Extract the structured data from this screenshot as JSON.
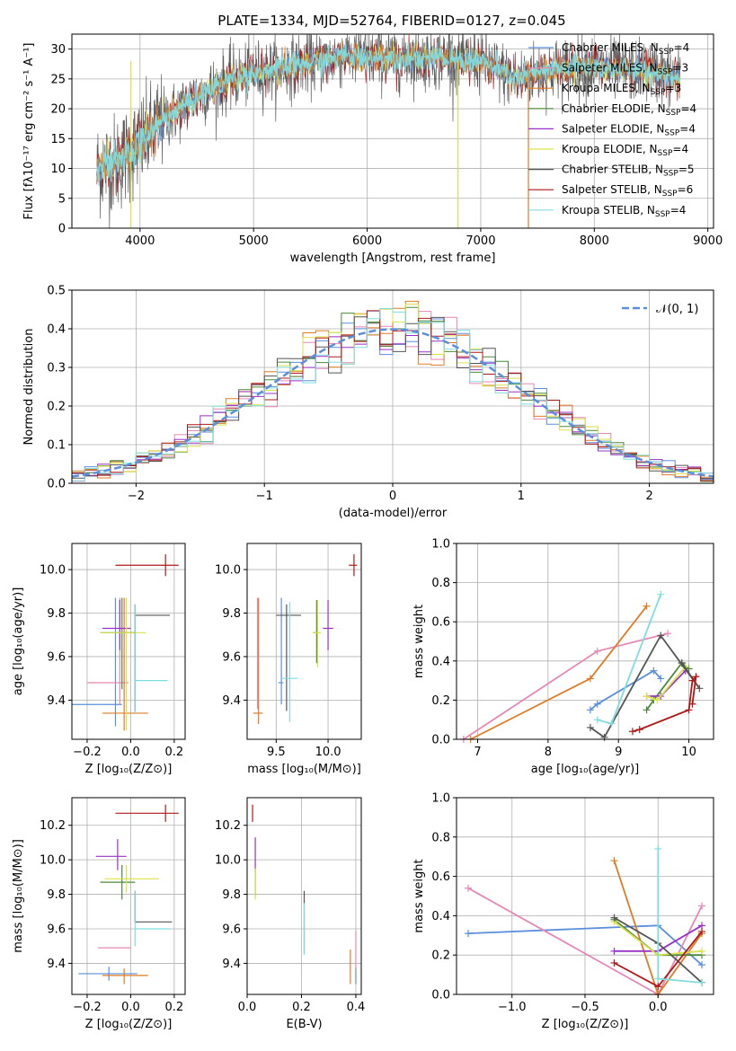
{
  "figure": {
    "title": "PLATE=1334, MJD=52764, FIBERID=0127, z=0.045"
  },
  "models": [
    {
      "key": "chabrier_miles",
      "name": "Chabrier MILES, N",
      "sub": "SSP",
      "tail": "=4",
      "color": "#5b8fd9"
    },
    {
      "key": "salpeter_miles",
      "name": "Salpeter MILES, N",
      "sub": "SSP",
      "tail": "=3",
      "color": "#e687b5"
    },
    {
      "key": "kroupa_miles",
      "name": "Kroupa MILES, N",
      "sub": "SSP",
      "tail": "=3",
      "color": "#e07b24"
    },
    {
      "key": "chabrier_elodie",
      "name": "Chabrier ELODIE, N",
      "sub": "SSP",
      "tail": "=4",
      "color": "#4a8a3a"
    },
    {
      "key": "salpeter_elodie",
      "name": "Salpeter ELODIE, N",
      "sub": "SSP",
      "tail": "=4",
      "color": "#9b30c8"
    },
    {
      "key": "kroupa_elodie",
      "name": "Kroupa ELODIE, N",
      "sub": "SSP",
      "tail": "=4",
      "color": "#d9e24a"
    },
    {
      "key": "chabrier_stelib",
      "name": "Chabrier STELIB, N",
      "sub": "SSP",
      "tail": "=5",
      "color": "#555555"
    },
    {
      "key": "salpeter_stelib",
      "name": "Salpeter STELIB, N",
      "sub": "SSP",
      "tail": "=6",
      "color": "#b01818"
    },
    {
      "key": "kroupa_stelib",
      "name": "Kroupa STELIB, N",
      "sub": "SSP",
      "tail": "=4",
      "color": "#7fdde0"
    }
  ],
  "chart_data": [
    {
      "id": "spectrum",
      "type": "line",
      "xlabel": "wavelength [Angstrom, rest frame]",
      "ylabel": "Flux [fλ10⁻¹⁷ erg cm⁻² s⁻¹ A⁻¹]",
      "xlim": [
        3400,
        9050
      ],
      "ylim": [
        0,
        32.5
      ],
      "xticks": [
        4000,
        5000,
        6000,
        7000,
        8000,
        9000
      ],
      "yticks": [
        0,
        5,
        10,
        15,
        20,
        25,
        30
      ],
      "data_range": [
        3620,
        8760
      ],
      "continuum": {
        "x": [
          3620,
          3800,
          4000,
          4200,
          4500,
          4800,
          5000,
          5300,
          5600,
          5800,
          6000,
          6300,
          6600,
          7000,
          7300,
          7500,
          7800,
          8000,
          8300,
          8600,
          8760
        ],
        "y": [
          10,
          11,
          14,
          18,
          22,
          25,
          26,
          27,
          28,
          29,
          28.5,
          28.5,
          28.5,
          28,
          25,
          26,
          27,
          27,
          26.5,
          26,
          25
        ]
      },
      "spikes": [
        {
          "x": 3920,
          "y": 0,
          "color": "#d9e24a"
        },
        {
          "x": 6800,
          "y": 0,
          "color": "#d9e24a"
        },
        {
          "x": 7420,
          "y": 0,
          "color": "#e07b24"
        },
        {
          "x": 6720,
          "y": 32.5,
          "color": "#555555"
        }
      ]
    },
    {
      "id": "residuals",
      "type": "histogram",
      "xlabel": "(data-model)/error",
      "ylabel": "Normed distribution",
      "xlim": [
        -2.5,
        2.5
      ],
      "ylim": [
        0,
        0.5
      ],
      "xticks": [
        -2,
        -1,
        0,
        1,
        2
      ],
      "yticks": [
        0.0,
        0.1,
        0.2,
        0.3,
        0.4,
        0.5
      ],
      "bin_width": 0.1,
      "reference": {
        "name": "𝒩(0, 1)",
        "mean": 0,
        "sigma": 1,
        "color": "#5b8fd9"
      },
      "peak_range": [
        0.35,
        0.48
      ]
    },
    {
      "id": "age_vs_Z",
      "type": "errorbar",
      "xlabel": "Z [log₁₀(Z/Z⊙)]",
      "ylabel": "age  [log₁₀(age/yr)]",
      "xlim": [
        -0.27,
        0.25
      ],
      "ylim": [
        9.22,
        10.12
      ],
      "xticks": [
        -0.2,
        0.0,
        0.2
      ],
      "yticks": [
        9.4,
        9.6,
        9.8,
        10.0
      ],
      "points": [
        {
          "m": "chabrier_miles",
          "x": -0.07,
          "y": 9.38,
          "xerr": [
            0.2,
            0.03
          ],
          "yerr": [
            0.1,
            0.49
          ]
        },
        {
          "m": "salpeter_miles",
          "x": -0.05,
          "y": 9.48,
          "xerr": [
            0.15,
            0.04
          ],
          "yerr": [
            0.1,
            0.39
          ]
        },
        {
          "m": "kroupa_miles",
          "x": -0.03,
          "y": 9.34,
          "xerr": [
            0.1,
            0.11
          ],
          "yerr": [
            0.08,
            0.53
          ]
        },
        {
          "m": "chabrier_elodie",
          "x": -0.04,
          "y": 9.71,
          "xerr": [
            0.1,
            0.06
          ],
          "yerr": [
            0.26,
            0.16
          ]
        },
        {
          "m": "salpeter_elodie",
          "x": -0.05,
          "y": 9.73,
          "xerr": [
            0.08,
            0.05
          ],
          "yerr": [
            0.1,
            0.13
          ]
        },
        {
          "m": "kroupa_elodie",
          "x": -0.02,
          "y": 9.71,
          "xerr": [
            0.12,
            0.09
          ],
          "yerr": [
            0.45,
            0.16
          ]
        },
        {
          "m": "chabrier_stelib",
          "x": 0.02,
          "y": 9.79,
          "xerr": [
            0.0,
            0.16
          ],
          "yerr": [
            0.44,
            0.05
          ]
        },
        {
          "m": "salpeter_stelib",
          "x": 0.16,
          "y": 10.02,
          "xerr": [
            0.23,
            0.06
          ],
          "yerr": [
            0.05,
            0.05
          ]
        },
        {
          "m": "kroupa_stelib",
          "x": 0.02,
          "y": 9.49,
          "xerr": [
            0.0,
            0.15
          ],
          "yerr": [
            0.15,
            0.35
          ]
        }
      ]
    },
    {
      "id": "age_vs_mass",
      "type": "errorbar",
      "xlabel": "mass [log₁₀(M/M⊙)]",
      "ylabel": "",
      "xlim": [
        9.22,
        10.32
      ],
      "ylim": [
        9.22,
        10.12
      ],
      "xticks": [
        9.5,
        10.0
      ],
      "yticks": [
        9.4,
        9.6,
        9.8,
        10.0
      ],
      "points": [
        {
          "m": "chabrier_miles",
          "x": 9.55,
          "y": 9.48,
          "xerr": [
            0.03,
            0.02
          ],
          "yerr": [
            0.1,
            0.39
          ]
        },
        {
          "m": "salpeter_miles",
          "x": 9.32,
          "y": 9.48,
          "xerr": [
            0.0,
            0.0
          ],
          "yerr": [
            0.12,
            0.39
          ]
        },
        {
          "m": "kroupa_miles",
          "x": 9.33,
          "y": 9.34,
          "xerr": [
            0.05,
            0.04
          ],
          "yerr": [
            0.05,
            0.53
          ]
        },
        {
          "m": "chabrier_elodie",
          "x": 9.89,
          "y": 9.71,
          "xerr": [
            0.03,
            0.02
          ],
          "yerr": [
            0.14,
            0.15
          ]
        },
        {
          "m": "salpeter_elodie",
          "x": 10.0,
          "y": 9.73,
          "xerr": [
            0.05,
            0.05
          ],
          "yerr": [
            0.1,
            0.13
          ]
        },
        {
          "m": "kroupa_elodie",
          "x": 9.9,
          "y": 9.71,
          "xerr": [
            0.05,
            0.03
          ],
          "yerr": [
            0.16,
            0.15
          ]
        },
        {
          "m": "chabrier_stelib",
          "x": 9.6,
          "y": 9.79,
          "xerr": [
            0.1,
            0.14
          ],
          "yerr": [
            0.44,
            0.05
          ]
        },
        {
          "m": "salpeter_stelib",
          "x": 10.25,
          "y": 10.02,
          "xerr": [
            0.05,
            0.03
          ],
          "yerr": [
            0.05,
            0.05
          ]
        },
        {
          "m": "kroupa_stelib",
          "x": 9.63,
          "y": 9.5,
          "xerr": [
            0.08,
            0.08
          ],
          "yerr": [
            0.2,
            0.35
          ]
        }
      ]
    },
    {
      "id": "massweight_vs_age",
      "type": "line",
      "xlabel": "age  [log₁₀(age/yr)]",
      "ylabel": "mass weight",
      "xlim": [
        6.7,
        10.35
      ],
      "ylim": [
        0,
        1.0
      ],
      "xticks": [
        7,
        8,
        9,
        10
      ],
      "yticks": [
        0.0,
        0.2,
        0.4,
        0.6,
        0.8,
        1.0
      ],
      "series": [
        {
          "m": "chabrier_miles",
          "x": [
            8.6,
            8.7,
            9.5,
            9.6
          ],
          "y": [
            0.15,
            0.18,
            0.35,
            0.31
          ]
        },
        {
          "m": "salpeter_miles",
          "x": [
            6.8,
            8.7,
            9.7
          ],
          "y": [
            0.0,
            0.45,
            0.54
          ]
        },
        {
          "m": "kroupa_miles",
          "x": [
            6.9,
            8.6,
            9.4
          ],
          "y": [
            0.0,
            0.31,
            0.68
          ]
        },
        {
          "m": "chabrier_elodie",
          "x": [
            9.4,
            9.5,
            9.9,
            10.0
          ],
          "y": [
            0.15,
            0.2,
            0.39,
            0.36
          ]
        },
        {
          "m": "salpeter_elodie",
          "x": [
            9.4,
            9.6,
            9.95
          ],
          "y": [
            0.22,
            0.22,
            0.35
          ]
        },
        {
          "m": "kroupa_elodie",
          "x": [
            9.4,
            9.55,
            9.95
          ],
          "y": [
            0.22,
            0.2,
            0.37
          ]
        },
        {
          "m": "chabrier_stelib",
          "x": [
            8.6,
            8.8,
            9.6,
            10.15,
            9.9
          ],
          "y": [
            0.06,
            0.01,
            0.53,
            0.26,
            0.39
          ]
        },
        {
          "m": "salpeter_stelib",
          "x": [
            9.2,
            9.3,
            10.0,
            10.05,
            10.1,
            10.05
          ],
          "y": [
            0.04,
            0.05,
            0.15,
            0.3,
            0.32,
            0.18
          ]
        },
        {
          "m": "kroupa_stelib",
          "x": [
            8.7,
            8.9,
            9.6
          ],
          "y": [
            0.1,
            0.08,
            0.74
          ]
        }
      ]
    },
    {
      "id": "mass_vs_Z",
      "type": "errorbar",
      "xlabel": "Z [log₁₀(Z/Z⊙)]",
      "ylabel": "mass [log₁₀(M/M⊙)]",
      "xlim": [
        -0.27,
        0.25
      ],
      "ylim": [
        9.22,
        10.36
      ],
      "xticks": [
        -0.2,
        0.0,
        0.2
      ],
      "yticks": [
        9.4,
        9.6,
        9.8,
        10.0,
        10.2
      ],
      "points": [
        {
          "m": "chabrier_miles",
          "x": -0.1,
          "y": 9.34,
          "xerr": [
            0.14,
            0.13
          ],
          "yerr": [
            0.04,
            0.04
          ]
        },
        {
          "m": "salpeter_miles",
          "x": -0.05,
          "y": 9.49,
          "xerr": [
            0.1,
            0.05
          ],
          "yerr": [
            0.0,
            0.0
          ]
        },
        {
          "m": "kroupa_miles",
          "x": -0.03,
          "y": 9.33,
          "xerr": [
            0.1,
            0.11
          ],
          "yerr": [
            0.05,
            0.04
          ]
        },
        {
          "m": "chabrier_elodie",
          "x": -0.04,
          "y": 9.87,
          "xerr": [
            0.1,
            0.06
          ],
          "yerr": [
            0.1,
            0.1
          ]
        },
        {
          "m": "salpeter_elodie",
          "x": -0.06,
          "y": 10.02,
          "xerr": [
            0.1,
            0.04
          ],
          "yerr": [
            0.08,
            0.1
          ]
        },
        {
          "m": "kroupa_elodie",
          "x": -0.02,
          "y": 9.89,
          "xerr": [
            0.1,
            0.15
          ],
          "yerr": [
            0.08,
            0.08
          ]
        },
        {
          "m": "chabrier_stelib",
          "x": 0.02,
          "y": 9.64,
          "xerr": [
            0.0,
            0.17
          ],
          "yerr": [
            0.0,
            0.18
          ]
        },
        {
          "m": "salpeter_stelib",
          "x": 0.16,
          "y": 10.27,
          "xerr": [
            0.23,
            0.06
          ],
          "yerr": [
            0.05,
            0.05
          ]
        },
        {
          "m": "kroupa_stelib",
          "x": 0.02,
          "y": 9.6,
          "xerr": [
            0.0,
            0.16
          ],
          "yerr": [
            0.1,
            0.22
          ]
        }
      ]
    },
    {
      "id": "mass_vs_EBV",
      "type": "errorbar",
      "xlabel": "E(B-V)",
      "ylabel": "",
      "xlim": [
        0.0,
        0.42
      ],
      "ylim": [
        9.22,
        10.36
      ],
      "xticks": [
        0.0,
        0.2,
        0.4
      ],
      "yticks": [
        9.4,
        9.6,
        9.8,
        10.0,
        10.2
      ],
      "points": [
        {
          "m": "chabrier_miles",
          "x": 0.4,
          "y": 9.33,
          "xerr": [
            0,
            0
          ],
          "yerr": [
            0.05,
            0.05
          ]
        },
        {
          "m": "salpeter_miles",
          "x": 0.4,
          "y": 9.49,
          "xerr": [
            0,
            0
          ],
          "yerr": [
            0.12,
            0.1
          ]
        },
        {
          "m": "kroupa_miles",
          "x": 0.38,
          "y": 9.33,
          "xerr": [
            0,
            0
          ],
          "yerr": [
            0.05,
            0.15
          ]
        },
        {
          "m": "chabrier_elodie",
          "x": 0.03,
          "y": 9.87,
          "xerr": [
            0,
            0
          ],
          "yerr": [
            0.08,
            0.08
          ]
        },
        {
          "m": "salpeter_elodie",
          "x": 0.03,
          "y": 10.03,
          "xerr": [
            0,
            0
          ],
          "yerr": [
            0.1,
            0.1
          ]
        },
        {
          "m": "kroupa_elodie",
          "x": 0.03,
          "y": 9.87,
          "xerr": [
            0,
            0
          ],
          "yerr": [
            0.1,
            0.08
          ]
        },
        {
          "m": "chabrier_stelib",
          "x": 0.21,
          "y": 9.64,
          "xerr": [
            0,
            0
          ],
          "yerr": [
            0.18,
            0.18
          ]
        },
        {
          "m": "salpeter_stelib",
          "x": 0.02,
          "y": 10.27,
          "xerr": [
            0,
            0
          ],
          "yerr": [
            0.05,
            0.05
          ]
        },
        {
          "m": "kroupa_stelib",
          "x": 0.21,
          "y": 9.6,
          "xerr": [
            0,
            0
          ],
          "yerr": [
            0.15,
            0.15
          ]
        }
      ]
    },
    {
      "id": "massweight_vs_Z",
      "type": "line",
      "xlabel": "Z [log₁₀(Z/Z⊙)]",
      "ylabel": "mass weight",
      "xlim": [
        -1.38,
        0.38
      ],
      "ylim": [
        0,
        1.0
      ],
      "xticks": [
        -1.0,
        -0.5,
        0.0
      ],
      "xticklabels": [
        "−1.0",
        "−0.5",
        "0.0"
      ],
      "yticks": [
        0.0,
        0.2,
        0.4,
        0.6,
        0.8,
        1.0
      ],
      "series": [
        {
          "m": "chabrier_miles",
          "x": [
            -1.3,
            0.0,
            0.3
          ],
          "y": [
            0.31,
            0.35,
            0.15
          ]
        },
        {
          "m": "salpeter_miles",
          "x": [
            -1.3,
            0.0,
            0.3
          ],
          "y": [
            0.54,
            0.0,
            0.45
          ]
        },
        {
          "m": "kroupa_miles",
          "x": [
            -0.3,
            0.0,
            0.3
          ],
          "y": [
            0.68,
            0.0,
            0.31
          ]
        },
        {
          "m": "chabrier_elodie",
          "x": [
            -0.3,
            0.0,
            0.3
          ],
          "y": [
            0.38,
            0.2,
            0.2
          ]
        },
        {
          "m": "salpeter_elodie",
          "x": [
            -0.3,
            0.0,
            0.3
          ],
          "y": [
            0.22,
            0.22,
            0.35
          ]
        },
        {
          "m": "kroupa_elodie",
          "x": [
            -0.3,
            0.0,
            0.3
          ],
          "y": [
            0.37,
            0.2,
            0.22
          ]
        },
        {
          "m": "chabrier_stelib",
          "x": [
            -0.3,
            0.0,
            0.3
          ],
          "y": [
            0.39,
            0.26,
            0.06
          ]
        },
        {
          "m": "salpeter_stelib",
          "x": [
            -0.3,
            0.0,
            0.3
          ],
          "y": [
            0.16,
            0.04,
            0.32
          ]
        },
        {
          "m": "kroupa_stelib",
          "x": [
            0.0,
            0.0,
            0.3
          ],
          "y": [
            0.74,
            0.08,
            0.06
          ]
        }
      ]
    }
  ]
}
